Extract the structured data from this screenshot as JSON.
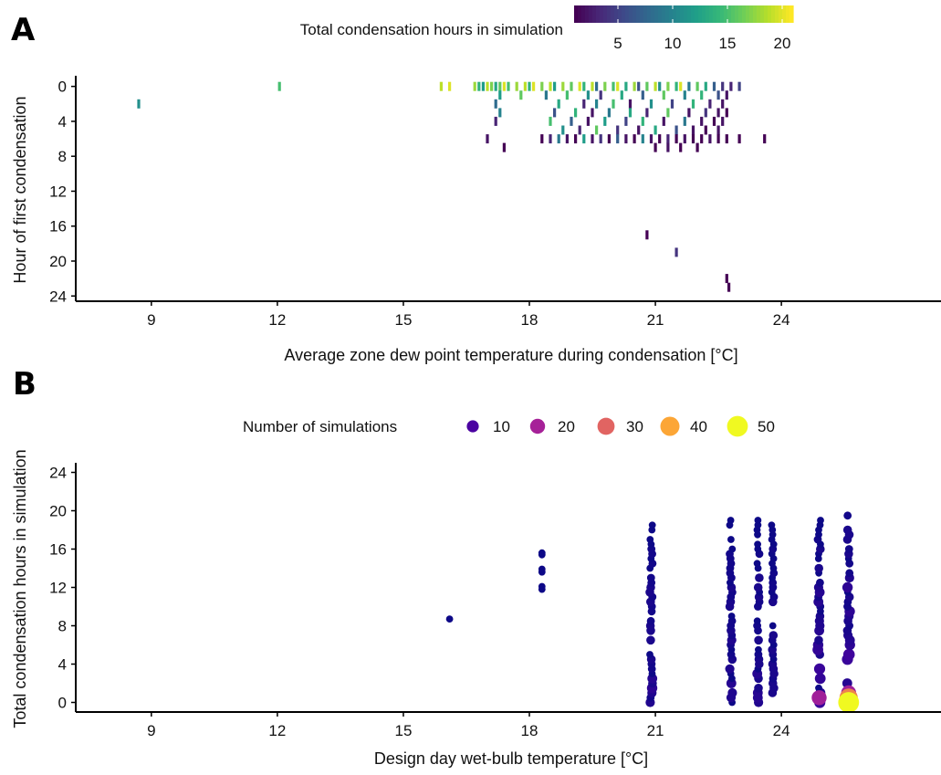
{
  "chart_data": [
    {
      "panel": "A",
      "type": "heatmap",
      "xlabel": "Average zone dew point temperature during condensation [°C]",
      "ylabel": "Hour of first condensation",
      "xticks": [
        9,
        12,
        15,
        18,
        21,
        24
      ],
      "yticks": [
        0,
        4,
        8,
        12,
        16,
        20,
        24
      ],
      "xlim": [
        7.2,
        27.8
      ],
      "ylim": [
        -0.8,
        24.6
      ],
      "y_reversed": true,
      "colorbar": {
        "title": "Total condensation hours in simulation",
        "ticks": [
          5,
          10,
          15,
          20
        ],
        "range": [
          1,
          21
        ],
        "colormap": [
          "#440154",
          "#482878",
          "#3e4a89",
          "#31688e",
          "#26828e",
          "#1f9e89",
          "#35b779",
          "#6ece58",
          "#b5de2b",
          "#fde725"
        ]
      },
      "points": [
        {
          "x": 8.7,
          "y": 2,
          "v": 11
        },
        {
          "x": 12.05,
          "y": 0,
          "v": 15
        },
        {
          "x": 15.9,
          "y": 0,
          "v": 19
        },
        {
          "x": 16.1,
          "y": 0,
          "v": 20
        },
        {
          "x": 16.7,
          "y": 0,
          "v": 18
        },
        {
          "x": 16.8,
          "y": 0,
          "v": 14
        },
        {
          "x": 16.9,
          "y": 0,
          "v": 12
        },
        {
          "x": 17.0,
          "y": 0,
          "v": 19
        },
        {
          "x": 17.1,
          "y": 0,
          "v": 17
        },
        {
          "x": 17.2,
          "y": 0,
          "v": 13
        },
        {
          "x": 17.3,
          "y": 0,
          "v": 16
        },
        {
          "x": 17.4,
          "y": 0,
          "v": 20
        },
        {
          "x": 17.5,
          "y": 0,
          "v": 15
        },
        {
          "x": 17.7,
          "y": 0,
          "v": 18
        },
        {
          "x": 17.9,
          "y": 0,
          "v": 19
        },
        {
          "x": 18.0,
          "y": 0,
          "v": 14
        },
        {
          "x": 18.1,
          "y": 0,
          "v": 20
        },
        {
          "x": 18.3,
          "y": 0,
          "v": 17
        },
        {
          "x": 18.5,
          "y": 0,
          "v": 19
        },
        {
          "x": 18.6,
          "y": 0,
          "v": 12
        },
        {
          "x": 18.8,
          "y": 0,
          "v": 18
        },
        {
          "x": 19.0,
          "y": 0,
          "v": 16
        },
        {
          "x": 19.2,
          "y": 0,
          "v": 20
        },
        {
          "x": 19.3,
          "y": 0,
          "v": 14
        },
        {
          "x": 19.5,
          "y": 0,
          "v": 19
        },
        {
          "x": 19.6,
          "y": 0,
          "v": 8
        },
        {
          "x": 19.8,
          "y": 0,
          "v": 17
        },
        {
          "x": 20.0,
          "y": 0,
          "v": 15
        },
        {
          "x": 20.1,
          "y": 0,
          "v": 20
        },
        {
          "x": 20.3,
          "y": 0,
          "v": 13
        },
        {
          "x": 20.5,
          "y": 0,
          "v": 18
        },
        {
          "x": 20.6,
          "y": 0,
          "v": 6
        },
        {
          "x": 20.8,
          "y": 0,
          "v": 16
        },
        {
          "x": 21.0,
          "y": 0,
          "v": 19
        },
        {
          "x": 21.1,
          "y": 0,
          "v": 11
        },
        {
          "x": 21.3,
          "y": 0,
          "v": 17
        },
        {
          "x": 21.5,
          "y": 0,
          "v": 14
        },
        {
          "x": 21.6,
          "y": 0,
          "v": 20
        },
        {
          "x": 21.8,
          "y": 0,
          "v": 9
        },
        {
          "x": 22.0,
          "y": 0,
          "v": 16
        },
        {
          "x": 22.2,
          "y": 0,
          "v": 13
        },
        {
          "x": 22.4,
          "y": 0,
          "v": 7
        },
        {
          "x": 22.6,
          "y": 0,
          "v": 4
        },
        {
          "x": 22.8,
          "y": 0,
          "v": 3
        },
        {
          "x": 23.0,
          "y": 0,
          "v": 5
        },
        {
          "x": 17.3,
          "y": 1,
          "v": 12
        },
        {
          "x": 17.8,
          "y": 1,
          "v": 16
        },
        {
          "x": 18.4,
          "y": 1,
          "v": 9
        },
        {
          "x": 18.9,
          "y": 1,
          "v": 15
        },
        {
          "x": 19.4,
          "y": 1,
          "v": 11
        },
        {
          "x": 19.7,
          "y": 1,
          "v": 4
        },
        {
          "x": 20.2,
          "y": 1,
          "v": 13
        },
        {
          "x": 20.7,
          "y": 1,
          "v": 7
        },
        {
          "x": 21.2,
          "y": 1,
          "v": 16
        },
        {
          "x": 21.7,
          "y": 1,
          "v": 10
        },
        {
          "x": 22.1,
          "y": 1,
          "v": 14
        },
        {
          "x": 22.5,
          "y": 1,
          "v": 6
        },
        {
          "x": 22.7,
          "y": 1,
          "v": 2
        },
        {
          "x": 17.2,
          "y": 2,
          "v": 8
        },
        {
          "x": 18.7,
          "y": 2,
          "v": 13
        },
        {
          "x": 19.3,
          "y": 2,
          "v": 3
        },
        {
          "x": 19.6,
          "y": 2,
          "v": 10
        },
        {
          "x": 20.0,
          "y": 2,
          "v": 15
        },
        {
          "x": 20.4,
          "y": 2,
          "v": 2
        },
        {
          "x": 20.9,
          "y": 2,
          "v": 11
        },
        {
          "x": 21.4,
          "y": 2,
          "v": 5
        },
        {
          "x": 21.9,
          "y": 2,
          "v": 14
        },
        {
          "x": 22.3,
          "y": 2,
          "v": 3
        },
        {
          "x": 22.6,
          "y": 2,
          "v": 2
        },
        {
          "x": 17.3,
          "y": 3,
          "v": 10
        },
        {
          "x": 18.6,
          "y": 3,
          "v": 6
        },
        {
          "x": 19.1,
          "y": 3,
          "v": 14
        },
        {
          "x": 19.5,
          "y": 3,
          "v": 2
        },
        {
          "x": 19.9,
          "y": 3,
          "v": 9
        },
        {
          "x": 20.4,
          "y": 3,
          "v": 13
        },
        {
          "x": 20.8,
          "y": 3,
          "v": 3
        },
        {
          "x": 21.3,
          "y": 3,
          "v": 16
        },
        {
          "x": 21.8,
          "y": 3,
          "v": 2
        },
        {
          "x": 22.2,
          "y": 3,
          "v": 4
        },
        {
          "x": 22.5,
          "y": 3,
          "v": 2
        },
        {
          "x": 22.7,
          "y": 3,
          "v": 1
        },
        {
          "x": 17.2,
          "y": 4,
          "v": 3
        },
        {
          "x": 18.5,
          "y": 4,
          "v": 15
        },
        {
          "x": 19.0,
          "y": 4,
          "v": 7
        },
        {
          "x": 19.4,
          "y": 4,
          "v": 2
        },
        {
          "x": 19.8,
          "y": 4,
          "v": 12
        },
        {
          "x": 20.3,
          "y": 4,
          "v": 5
        },
        {
          "x": 20.7,
          "y": 4,
          "v": 14
        },
        {
          "x": 21.2,
          "y": 4,
          "v": 2
        },
        {
          "x": 21.7,
          "y": 4,
          "v": 9
        },
        {
          "x": 22.1,
          "y": 4,
          "v": 2
        },
        {
          "x": 22.4,
          "y": 4,
          "v": 1
        },
        {
          "x": 22.6,
          "y": 4,
          "v": 2
        },
        {
          "x": 18.8,
          "y": 5,
          "v": 11
        },
        {
          "x": 19.2,
          "y": 5,
          "v": 3
        },
        {
          "x": 19.6,
          "y": 5,
          "v": 16
        },
        {
          "x": 20.1,
          "y": 5,
          "v": 4
        },
        {
          "x": 20.6,
          "y": 5,
          "v": 2
        },
        {
          "x": 21.0,
          "y": 5,
          "v": 13
        },
        {
          "x": 21.5,
          "y": 5,
          "v": 6
        },
        {
          "x": 21.9,
          "y": 5,
          "v": 2
        },
        {
          "x": 22.2,
          "y": 5,
          "v": 1
        },
        {
          "x": 22.5,
          "y": 5,
          "v": 2
        },
        {
          "x": 17.0,
          "y": 6,
          "v": 2
        },
        {
          "x": 18.3,
          "y": 6,
          "v": 1
        },
        {
          "x": 18.5,
          "y": 6,
          "v": 3
        },
        {
          "x": 18.7,
          "y": 6,
          "v": 9
        },
        {
          "x": 18.9,
          "y": 6,
          "v": 2
        },
        {
          "x": 19.1,
          "y": 6,
          "v": 1
        },
        {
          "x": 19.3,
          "y": 6,
          "v": 12
        },
        {
          "x": 19.5,
          "y": 6,
          "v": 2
        },
        {
          "x": 19.7,
          "y": 6,
          "v": 4
        },
        {
          "x": 19.9,
          "y": 6,
          "v": 1
        },
        {
          "x": 20.1,
          "y": 6,
          "v": 7
        },
        {
          "x": 20.3,
          "y": 6,
          "v": 2
        },
        {
          "x": 20.5,
          "y": 6,
          "v": 1
        },
        {
          "x": 20.7,
          "y": 6,
          "v": 10
        },
        {
          "x": 20.9,
          "y": 6,
          "v": 2
        },
        {
          "x": 21.1,
          "y": 6,
          "v": 1
        },
        {
          "x": 21.3,
          "y": 6,
          "v": 3
        },
        {
          "x": 21.5,
          "y": 6,
          "v": 1
        },
        {
          "x": 21.7,
          "y": 6,
          "v": 2
        },
        {
          "x": 21.9,
          "y": 6,
          "v": 1
        },
        {
          "x": 22.1,
          "y": 6,
          "v": 1
        },
        {
          "x": 22.3,
          "y": 6,
          "v": 2
        },
        {
          "x": 22.5,
          "y": 6,
          "v": 1
        },
        {
          "x": 22.7,
          "y": 6,
          "v": 1
        },
        {
          "x": 23.0,
          "y": 6,
          "v": 1
        },
        {
          "x": 23.6,
          "y": 6,
          "v": 1
        },
        {
          "x": 17.4,
          "y": 7,
          "v": 1
        },
        {
          "x": 21.0,
          "y": 7,
          "v": 1
        },
        {
          "x": 21.3,
          "y": 7,
          "v": 2
        },
        {
          "x": 21.6,
          "y": 7,
          "v": 1
        },
        {
          "x": 22.0,
          "y": 7,
          "v": 1
        },
        {
          "x": 20.8,
          "y": 17,
          "v": 1
        },
        {
          "x": 21.5,
          "y": 19,
          "v": 4
        },
        {
          "x": 22.7,
          "y": 22,
          "v": 1
        },
        {
          "x": 22.75,
          "y": 23,
          "v": 1
        }
      ]
    },
    {
      "panel": "B",
      "type": "scatter",
      "xlabel": "Design day wet-bulb temperature [°C]",
      "ylabel": "Total condensation hours in simulation",
      "xticks": [
        9,
        12,
        15,
        18,
        21,
        24
      ],
      "yticks": [
        0,
        4,
        8,
        12,
        16,
        20,
        24
      ],
      "xlim": [
        7.2,
        27.8
      ],
      "ylim": [
        -1,
        25
      ],
      "size_legend": {
        "title": "Number of simulations",
        "entries": [
          10,
          20,
          30,
          40,
          50
        ],
        "colors": [
          "#4b03a1",
          "#a62198",
          "#e16462",
          "#fca636",
          "#f0f921"
        ]
      },
      "groups": [
        {
          "x": 16.1,
          "points": [
            [
              8.7,
              1
            ]
          ]
        },
        {
          "x": 18.3,
          "points": [
            [
              15.4,
              1
            ],
            [
              15.6,
              1
            ],
            [
              13.6,
              1
            ],
            [
              13.9,
              1
            ],
            [
              11.8,
              1
            ],
            [
              12.1,
              1
            ]
          ]
        },
        {
          "x": 20.9,
          "range": [
            0,
            19
          ],
          "count": 6
        },
        {
          "x": 22.8,
          "range": [
            0,
            19
          ],
          "count": 5
        },
        {
          "x": 23.45,
          "range": [
            0,
            19
          ],
          "count": 5
        },
        {
          "x": 23.8,
          "range": [
            0,
            18.5
          ],
          "count": 4
        },
        {
          "x": 24.9,
          "range": [
            0,
            19
          ],
          "count": 9
        },
        {
          "x": 25.6,
          "range": [
            0,
            20
          ],
          "count": 14
        }
      ]
    }
  ]
}
